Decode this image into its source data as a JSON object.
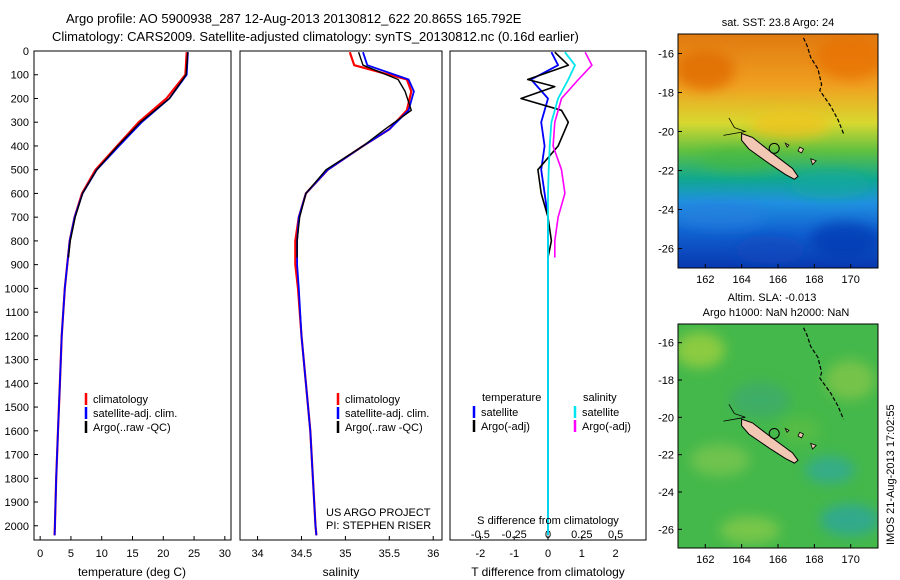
{
  "header": {
    "line1": "Argo profile: AO 5900938_287 12-Aug-2013 20130812_622 20.865S 165.792E",
    "line2": "Climatology: CARS2009. Satellite-adjusted climatology: synTS_20130812.nc (0.16d earlier)"
  },
  "colors": {
    "climatology": "#ff0000",
    "satellite": "#0000ff",
    "argo": "#000000",
    "sal_satellite": "#00e5ee",
    "sal_argo": "#ff00ff",
    "land": "#f2c8b4"
  },
  "chart_data": [
    {
      "type": "line",
      "name": "temperature",
      "xlabel": "temperature (deg C)",
      "ylabel": "",
      "xlim": [
        -1,
        31
      ],
      "ylim": [
        2060,
        0
      ],
      "xticks": [
        0,
        5,
        10,
        15,
        20,
        25,
        30
      ],
      "yticks": [
        0,
        100,
        200,
        300,
        400,
        500,
        600,
        700,
        800,
        900,
        1000,
        1100,
        1200,
        1300,
        1400,
        1500,
        1600,
        1700,
        1800,
        1900,
        2000
      ],
      "legend": [
        "climatology",
        "satellite-adj. clim.",
        "Argo(..raw -QC)"
      ],
      "series": [
        {
          "name": "climatology",
          "depth": [
            5,
            100,
            200,
            300,
            400,
            500,
            600,
            700,
            800,
            1000,
            1200,
            1400,
            1600,
            1800,
            2000,
            2040
          ],
          "values": [
            23.8,
            23.6,
            20.5,
            16.0,
            12.5,
            9.0,
            6.8,
            5.6,
            4.8,
            4.0,
            3.5,
            3.2,
            2.9,
            2.6,
            2.4,
            2.35
          ]
        },
        {
          "name": "satellite-adj. clim.",
          "depth": [
            5,
            100,
            200,
            300,
            400,
            500,
            600,
            700,
            800,
            1000,
            1200,
            1400,
            1600,
            1800,
            2000,
            2040
          ],
          "values": [
            24.0,
            23.8,
            21.0,
            16.5,
            12.8,
            9.2,
            6.9,
            5.6,
            4.8,
            4.0,
            3.5,
            3.2,
            2.9,
            2.6,
            2.4,
            2.35
          ]
        },
        {
          "name": "Argo(..raw -QC)",
          "depth": [
            5,
            100,
            200,
            300,
            400,
            500,
            600,
            700,
            800,
            870
          ],
          "values": [
            24.0,
            23.7,
            21.0,
            16.3,
            12.6,
            9.2,
            6.9,
            5.7,
            4.9,
            4.6
          ]
        }
      ]
    },
    {
      "type": "line",
      "name": "salinity",
      "xlabel": "salinity",
      "ylabel": "",
      "xlim": [
        33.8,
        36.1
      ],
      "ylim": [
        2060,
        0
      ],
      "xticks": [
        34,
        34.5,
        35,
        35.5,
        36
      ],
      "legend": [
        "climatology",
        "satellite-adj. clim.",
        "Argo(..raw -QC)"
      ],
      "annotation": [
        "US ARGO PROJECT",
        "PI: STEPHEN RISER"
      ],
      "series": [
        {
          "name": "climatology",
          "depth": [
            5,
            60,
            120,
            170,
            250,
            330,
            400,
            500,
            600,
            700,
            800,
            900,
            1000,
            1200,
            1400,
            1600,
            1800,
            2000,
            2040
          ],
          "values": [
            35.05,
            35.1,
            35.7,
            35.75,
            35.7,
            35.5,
            35.2,
            34.8,
            34.55,
            34.47,
            34.43,
            34.43,
            34.46,
            34.5,
            34.55,
            34.6,
            34.63,
            34.66,
            34.67
          ]
        },
        {
          "name": "satellite-adj. clim.",
          "depth": [
            5,
            60,
            120,
            170,
            250,
            330,
            400,
            500,
            600,
            700,
            800,
            900,
            1000,
            1200,
            1400,
            1600,
            1800,
            2000,
            2040
          ],
          "values": [
            35.2,
            35.25,
            35.72,
            35.78,
            35.72,
            35.5,
            35.2,
            34.8,
            34.55,
            34.47,
            34.45,
            34.45,
            34.47,
            34.5,
            34.55,
            34.6,
            34.63,
            34.66,
            34.67
          ]
        },
        {
          "name": "Argo(..raw -QC)",
          "depth": [
            5,
            60,
            120,
            170,
            250,
            330,
            400,
            500,
            600,
            700,
            800,
            870
          ],
          "values": [
            35.15,
            35.2,
            35.6,
            35.68,
            35.75,
            35.45,
            35.2,
            34.78,
            34.55,
            34.48,
            34.45,
            34.45
          ]
        }
      ]
    },
    {
      "type": "line",
      "name": "difference",
      "xlabel": "T difference from climatology",
      "xlabel2": "S difference from climatology",
      "xlim": [
        -2.9,
        2.9
      ],
      "ylim": [
        2060,
        0
      ],
      "xticks": [
        -2,
        -1,
        0,
        1,
        2
      ],
      "xticks2": [
        "-0.5",
        "-0.25",
        "0",
        "0.25",
        "0.5"
      ],
      "legend_temperature_title": "temperature",
      "legend_salinity_title": "salinity",
      "legend": [
        "satellite",
        "Argo(-adj)",
        "satellite",
        "Argo(-adj)"
      ],
      "series": [
        {
          "name": "T satellite",
          "depth": [
            5,
            60,
            120,
            200,
            300,
            400,
            500,
            600,
            700,
            800,
            900,
            2040
          ],
          "values": [
            0.1,
            0.3,
            -0.5,
            0.0,
            -0.2,
            -0.1,
            -0.2,
            -0.1,
            0.0,
            0.0,
            0.0,
            0.0
          ]
        },
        {
          "name": "T Argo(-adj)",
          "depth": [
            5,
            60,
            120,
            150,
            200,
            250,
            300,
            400,
            500,
            600,
            700,
            800,
            870
          ],
          "values": [
            0.2,
            0.6,
            -0.6,
            0.2,
            -0.8,
            0.4,
            0.6,
            0.3,
            -0.3,
            -0.2,
            0.0,
            0.1,
            0.0
          ]
        },
        {
          "name": "S satellite",
          "depth": [
            5,
            60,
            120,
            200,
            300,
            400,
            500,
            600,
            700,
            800,
            900,
            2040
          ],
          "values": [
            0.5,
            0.8,
            0.6,
            0.3,
            0.1,
            0.05,
            0.02,
            0.0,
            0.0,
            0.0,
            0.0,
            0.0
          ]
        },
        {
          "name": "S Argo(-adj)",
          "depth": [
            5,
            60,
            120,
            200,
            300,
            400,
            500,
            600,
            700,
            800,
            870
          ],
          "values": [
            1.1,
            1.3,
            0.9,
            0.4,
            0.2,
            0.15,
            0.4,
            0.5,
            0.3,
            0.2,
            0.2
          ]
        }
      ]
    },
    {
      "type": "heatmap",
      "name": "sst map",
      "title": "sat. SST: 23.8 Argo: 24",
      "xticks": [
        162,
        164,
        166,
        168,
        170
      ],
      "yticks": [
        -16,
        -18,
        -20,
        -22,
        -24,
        -26
      ],
      "xlim": [
        160.5,
        171.5
      ],
      "ylim": [
        -27,
        -15
      ],
      "argo_position": [
        165.792,
        -20.865
      ]
    },
    {
      "type": "heatmap",
      "name": "sla map",
      "title": "Altim. SLA: -0.013",
      "subtitle": "Argo h1000: NaN h2000: NaN",
      "xticks": [
        162,
        164,
        166,
        168,
        170
      ],
      "yticks": [
        -16,
        -18,
        -20,
        -22,
        -24,
        -26
      ],
      "xlim": [
        160.5,
        171.5
      ],
      "ylim": [
        -27,
        -15
      ],
      "argo_position": [
        165.792,
        -20.865
      ]
    }
  ],
  "side_caption": "IMOS 21-Aug-2013 17:02:55"
}
